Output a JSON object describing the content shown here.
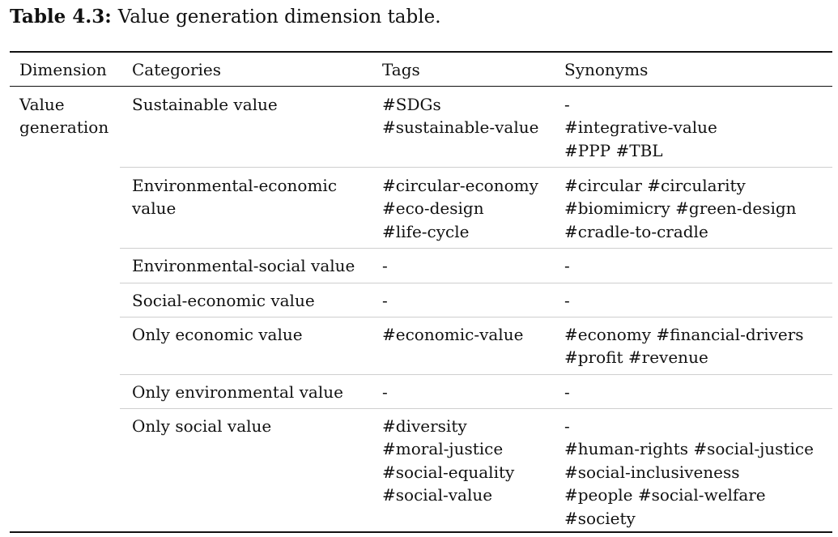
{
  "caption": {
    "label": "Table 4.3:",
    "text": "Value generation dimension table."
  },
  "table": {
    "headers": {
      "dimension": "Dimension",
      "categories": "Categories",
      "tags": "Tags",
      "synonyms": "Synonyms"
    },
    "dimension_lines": [
      "Value",
      "generation"
    ],
    "rows": [
      {
        "category": [
          "Sustainable value"
        ],
        "tags": [
          "#SDGs",
          "#sustainable-value"
        ],
        "synonyms": [
          "-",
          "#integrative-value",
          "#PPP #TBL"
        ]
      },
      {
        "category": [
          "Environmental-economic",
          "value"
        ],
        "tags": [
          "#circular-economy",
          "#eco-design",
          "#life-cycle"
        ],
        "synonyms": [
          "#circular #circularity",
          "#biomimicry #green-design",
          "#cradle-to-cradle"
        ]
      },
      {
        "category": [
          "Environmental-social value"
        ],
        "tags": [
          "-"
        ],
        "synonyms": [
          "-"
        ]
      },
      {
        "category": [
          "Social-economic value"
        ],
        "tags": [
          "-"
        ],
        "synonyms": [
          "-"
        ]
      },
      {
        "category": [
          "Only economic value"
        ],
        "tags": [
          "#economic-value"
        ],
        "synonyms": [
          "#economy #financial-drivers",
          "#profit #revenue"
        ]
      },
      {
        "category": [
          "Only environmental value"
        ],
        "tags": [
          "-"
        ],
        "synonyms": [
          "-"
        ]
      },
      {
        "category": [
          "Only social value"
        ],
        "tags": [
          "#diversity",
          "#moral-justice",
          "#social-equality",
          "#social-value"
        ],
        "synonyms": [
          "-",
          "#human-rights #social-justice",
          "#social-inclusiveness",
          "#people #social-welfare",
          "#society"
        ]
      }
    ]
  }
}
